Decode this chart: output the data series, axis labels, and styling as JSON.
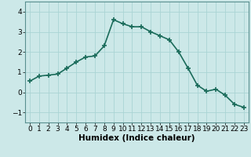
{
  "x": [
    0,
    1,
    2,
    3,
    4,
    5,
    6,
    7,
    8,
    9,
    10,
    11,
    12,
    13,
    14,
    15,
    16,
    17,
    18,
    19,
    20,
    21,
    22,
    23
  ],
  "y": [
    0.55,
    0.8,
    0.85,
    0.9,
    1.2,
    1.5,
    1.75,
    1.8,
    2.3,
    3.6,
    3.4,
    3.25,
    3.25,
    3.0,
    2.8,
    2.6,
    2.0,
    1.2,
    0.35,
    0.05,
    0.15,
    -0.15,
    -0.6,
    -0.75
  ],
  "line_color": "#1a6b5a",
  "marker": "+",
  "bg_color": "#cce8e8",
  "grid_color": "#aad4d4",
  "xlabel": "Humidex (Indice chaleur)",
  "ylim": [
    -1.5,
    4.5
  ],
  "xlim": [
    -0.5,
    23.5
  ],
  "yticks": [
    -1,
    0,
    1,
    2,
    3,
    4
  ],
  "xticks": [
    0,
    1,
    2,
    3,
    4,
    5,
    6,
    7,
    8,
    9,
    10,
    11,
    12,
    13,
    14,
    15,
    16,
    17,
    18,
    19,
    20,
    21,
    22,
    23
  ],
  "xlabel_fontsize": 7.5,
  "tick_fontsize": 6.5,
  "linewidth": 1.2,
  "markersize": 4,
  "spine_color": "#5a9090"
}
